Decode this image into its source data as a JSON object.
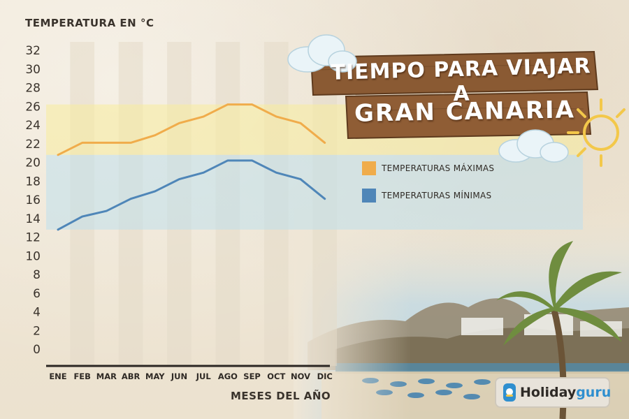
{
  "header": {
    "title_line1": "TIEMPO PARA VIAJAR A",
    "title_line2": "GRAN CANARIA"
  },
  "logo": {
    "text_main": "Holiday",
    "text_accent": "guru"
  },
  "colors": {
    "max": "#f0ac4b",
    "min": "#4f86b8",
    "max_band": "#f7ec9c",
    "min_band": "#bfe0ec"
  },
  "chart_data": {
    "type": "line",
    "ylabel": "TEMPERATURA EN °C",
    "xlabel": "MESES DEL AÑO",
    "categories": [
      "ENE",
      "FEB",
      "MAR",
      "ABR",
      "MAY",
      "JUN",
      "JUL",
      "AGO",
      "SEP",
      "OCT",
      "NOV",
      "DIC"
    ],
    "yticks": [
      0,
      2,
      4,
      6,
      8,
      10,
      12,
      14,
      16,
      18,
      20,
      22,
      24,
      26,
      28,
      30,
      32
    ],
    "ylim": [
      0,
      32
    ],
    "series": [
      {
        "name": "TEMPERATURAS MÁXIMAS",
        "values": [
          20.8,
          22.1,
          22.1,
          22.1,
          22.9,
          24.2,
          24.9,
          26.2,
          26.2,
          24.9,
          24.2,
          22.1
        ]
      },
      {
        "name": "TEMPERATURAS MÍNIMAS",
        "values": [
          12.8,
          14.2,
          14.8,
          16.1,
          16.9,
          18.2,
          18.9,
          20.2,
          20.2,
          18.9,
          18.2,
          16.1
        ]
      }
    ],
    "bands": [
      {
        "series": "TEMPERATURAS MÁXIMAS",
        "from": 20.8,
        "to": 26.2
      },
      {
        "series": "TEMPERATURAS MÍNIMAS",
        "from": 12.8,
        "to": 20.8
      }
    ],
    "grid": "vertical-stripes",
    "legend": "right"
  }
}
